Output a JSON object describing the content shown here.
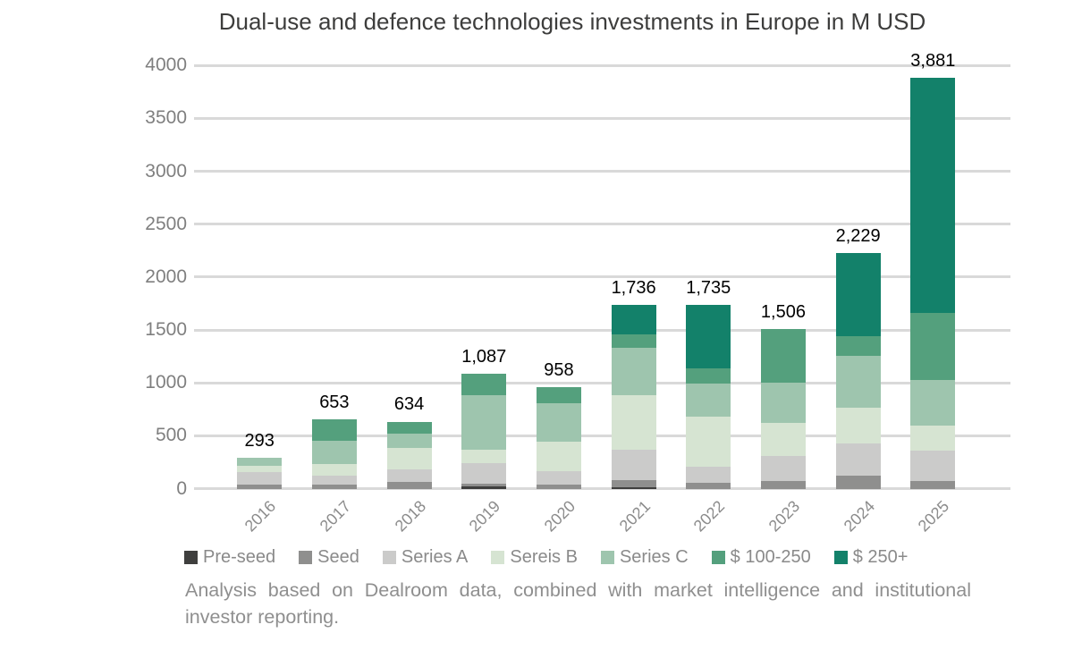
{
  "chart_data": {
    "type": "bar",
    "stacked": true,
    "title": "Dual-use and defence technologies investments in Europe in M USD",
    "categories": [
      "2016",
      "2017",
      "2018",
      "2019",
      "2020",
      "2021",
      "2022",
      "2023",
      "2024",
      "2025"
    ],
    "series": [
      {
        "name": "Pre-seed",
        "color": "#3f3f3e",
        "values": [
          0,
          0,
          0,
          21,
          0,
          17,
          0,
          0,
          0,
          0
        ]
      },
      {
        "name": "Seed",
        "color": "#8f8f8e",
        "values": [
          40,
          41,
          66,
          28,
          38,
          67,
          51,
          74,
          120,
          72
        ]
      },
      {
        "name": "Series A",
        "color": "#cbcbca",
        "values": [
          118,
          78,
          118,
          190,
          127,
          287,
          156,
          231,
          306,
          286
        ]
      },
      {
        "name": "Sereis B",
        "color": "#d6e4d2",
        "values": [
          60,
          110,
          202,
          128,
          277,
          513,
          470,
          318,
          342,
          236
        ]
      },
      {
        "name": "Series C",
        "color": "#9ec5ae",
        "values": [
          75,
          224,
          136,
          515,
          366,
          450,
          313,
          380,
          488,
          434
        ]
      },
      {
        "name": "$ 100-250",
        "color": "#54a07d",
        "values": [
          0,
          200,
          112,
          205,
          150,
          127,
          145,
          503,
          183,
          632
        ]
      },
      {
        "name": "$ 250+",
        "color": "#13816a",
        "values": [
          0,
          0,
          0,
          0,
          0,
          275,
          600,
          0,
          790,
          2221
        ]
      }
    ],
    "totals": [
      293,
      653,
      634,
      1087,
      958,
      1736,
      1735,
      1506,
      2229,
      3881
    ],
    "total_labels": [
      "293",
      "653",
      "634",
      "1,087",
      "958",
      "1,736",
      "1,735",
      "1,506",
      "2,229",
      "3,881"
    ],
    "y_ticks": [
      0,
      500,
      1000,
      1500,
      2000,
      2500,
      3000,
      3500,
      4000
    ],
    "ylim": [
      0,
      4000
    ],
    "xlabel": "",
    "ylabel": "",
    "grid": true,
    "legend_position": "bottom",
    "note": "Analysis based on Dealroom data, combined with market intelligence and institutional investor reporting."
  },
  "colors": {
    "background": "#ffffff",
    "gridline": "#d9d9d9",
    "title_text": "#3d3d3c",
    "axis_text": "#7f7f7f",
    "xaxis_text": "#8c8c8c",
    "legend_text": "#8a8a8a",
    "note_text": "#8f8f8f",
    "bar_label_text": "#000000"
  }
}
